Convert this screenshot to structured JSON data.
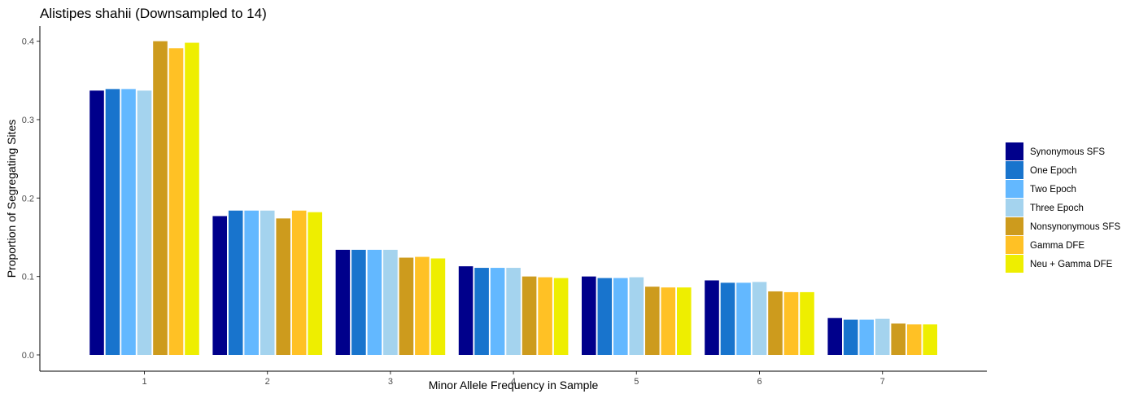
{
  "chart_data": {
    "type": "bar",
    "title": "Alistipes shahii (Downsampled to 14)",
    "xlabel": "Minor Allele Frequency in Sample",
    "ylabel": "Proportion of Segregating Sites",
    "categories": [
      "1",
      "2",
      "3",
      "4",
      "5",
      "6",
      "7"
    ],
    "ylim": [
      0,
      0.42
    ],
    "yticks": [
      0.0,
      0.1,
      0.2,
      0.3,
      0.4
    ],
    "ytick_labels": [
      "0.0",
      "0.1",
      "0.2",
      "0.3",
      "0.4"
    ],
    "grid": false,
    "legend_position": "right",
    "series": [
      {
        "name": "Synonymous SFS",
        "color": "#00008B",
        "values": [
          0.337,
          0.177,
          0.134,
          0.113,
          0.1,
          0.095,
          0.047
        ]
      },
      {
        "name": "One Epoch",
        "color": "#1874CD",
        "values": [
          0.339,
          0.184,
          0.134,
          0.111,
          0.098,
          0.092,
          0.045
        ]
      },
      {
        "name": "Two Epoch",
        "color": "#63B8FF",
        "values": [
          0.339,
          0.184,
          0.134,
          0.111,
          0.098,
          0.092,
          0.045
        ]
      },
      {
        "name": "Three Epoch",
        "color": "#A4D3EE",
        "values": [
          0.337,
          0.184,
          0.134,
          0.111,
          0.099,
          0.093,
          0.046
        ]
      },
      {
        "name": "Nonsynonymous SFS",
        "color": "#CD9B1D",
        "values": [
          0.4,
          0.174,
          0.124,
          0.1,
          0.087,
          0.081,
          0.04
        ]
      },
      {
        "name": "Gamma DFE",
        "color": "#FFC125",
        "values": [
          0.391,
          0.184,
          0.125,
          0.099,
          0.086,
          0.08,
          0.039
        ]
      },
      {
        "name": "Neu + Gamma DFE",
        "color": "#EEEE00",
        "values": [
          0.398,
          0.182,
          0.123,
          0.098,
          0.086,
          0.08,
          0.039
        ]
      }
    ]
  }
}
